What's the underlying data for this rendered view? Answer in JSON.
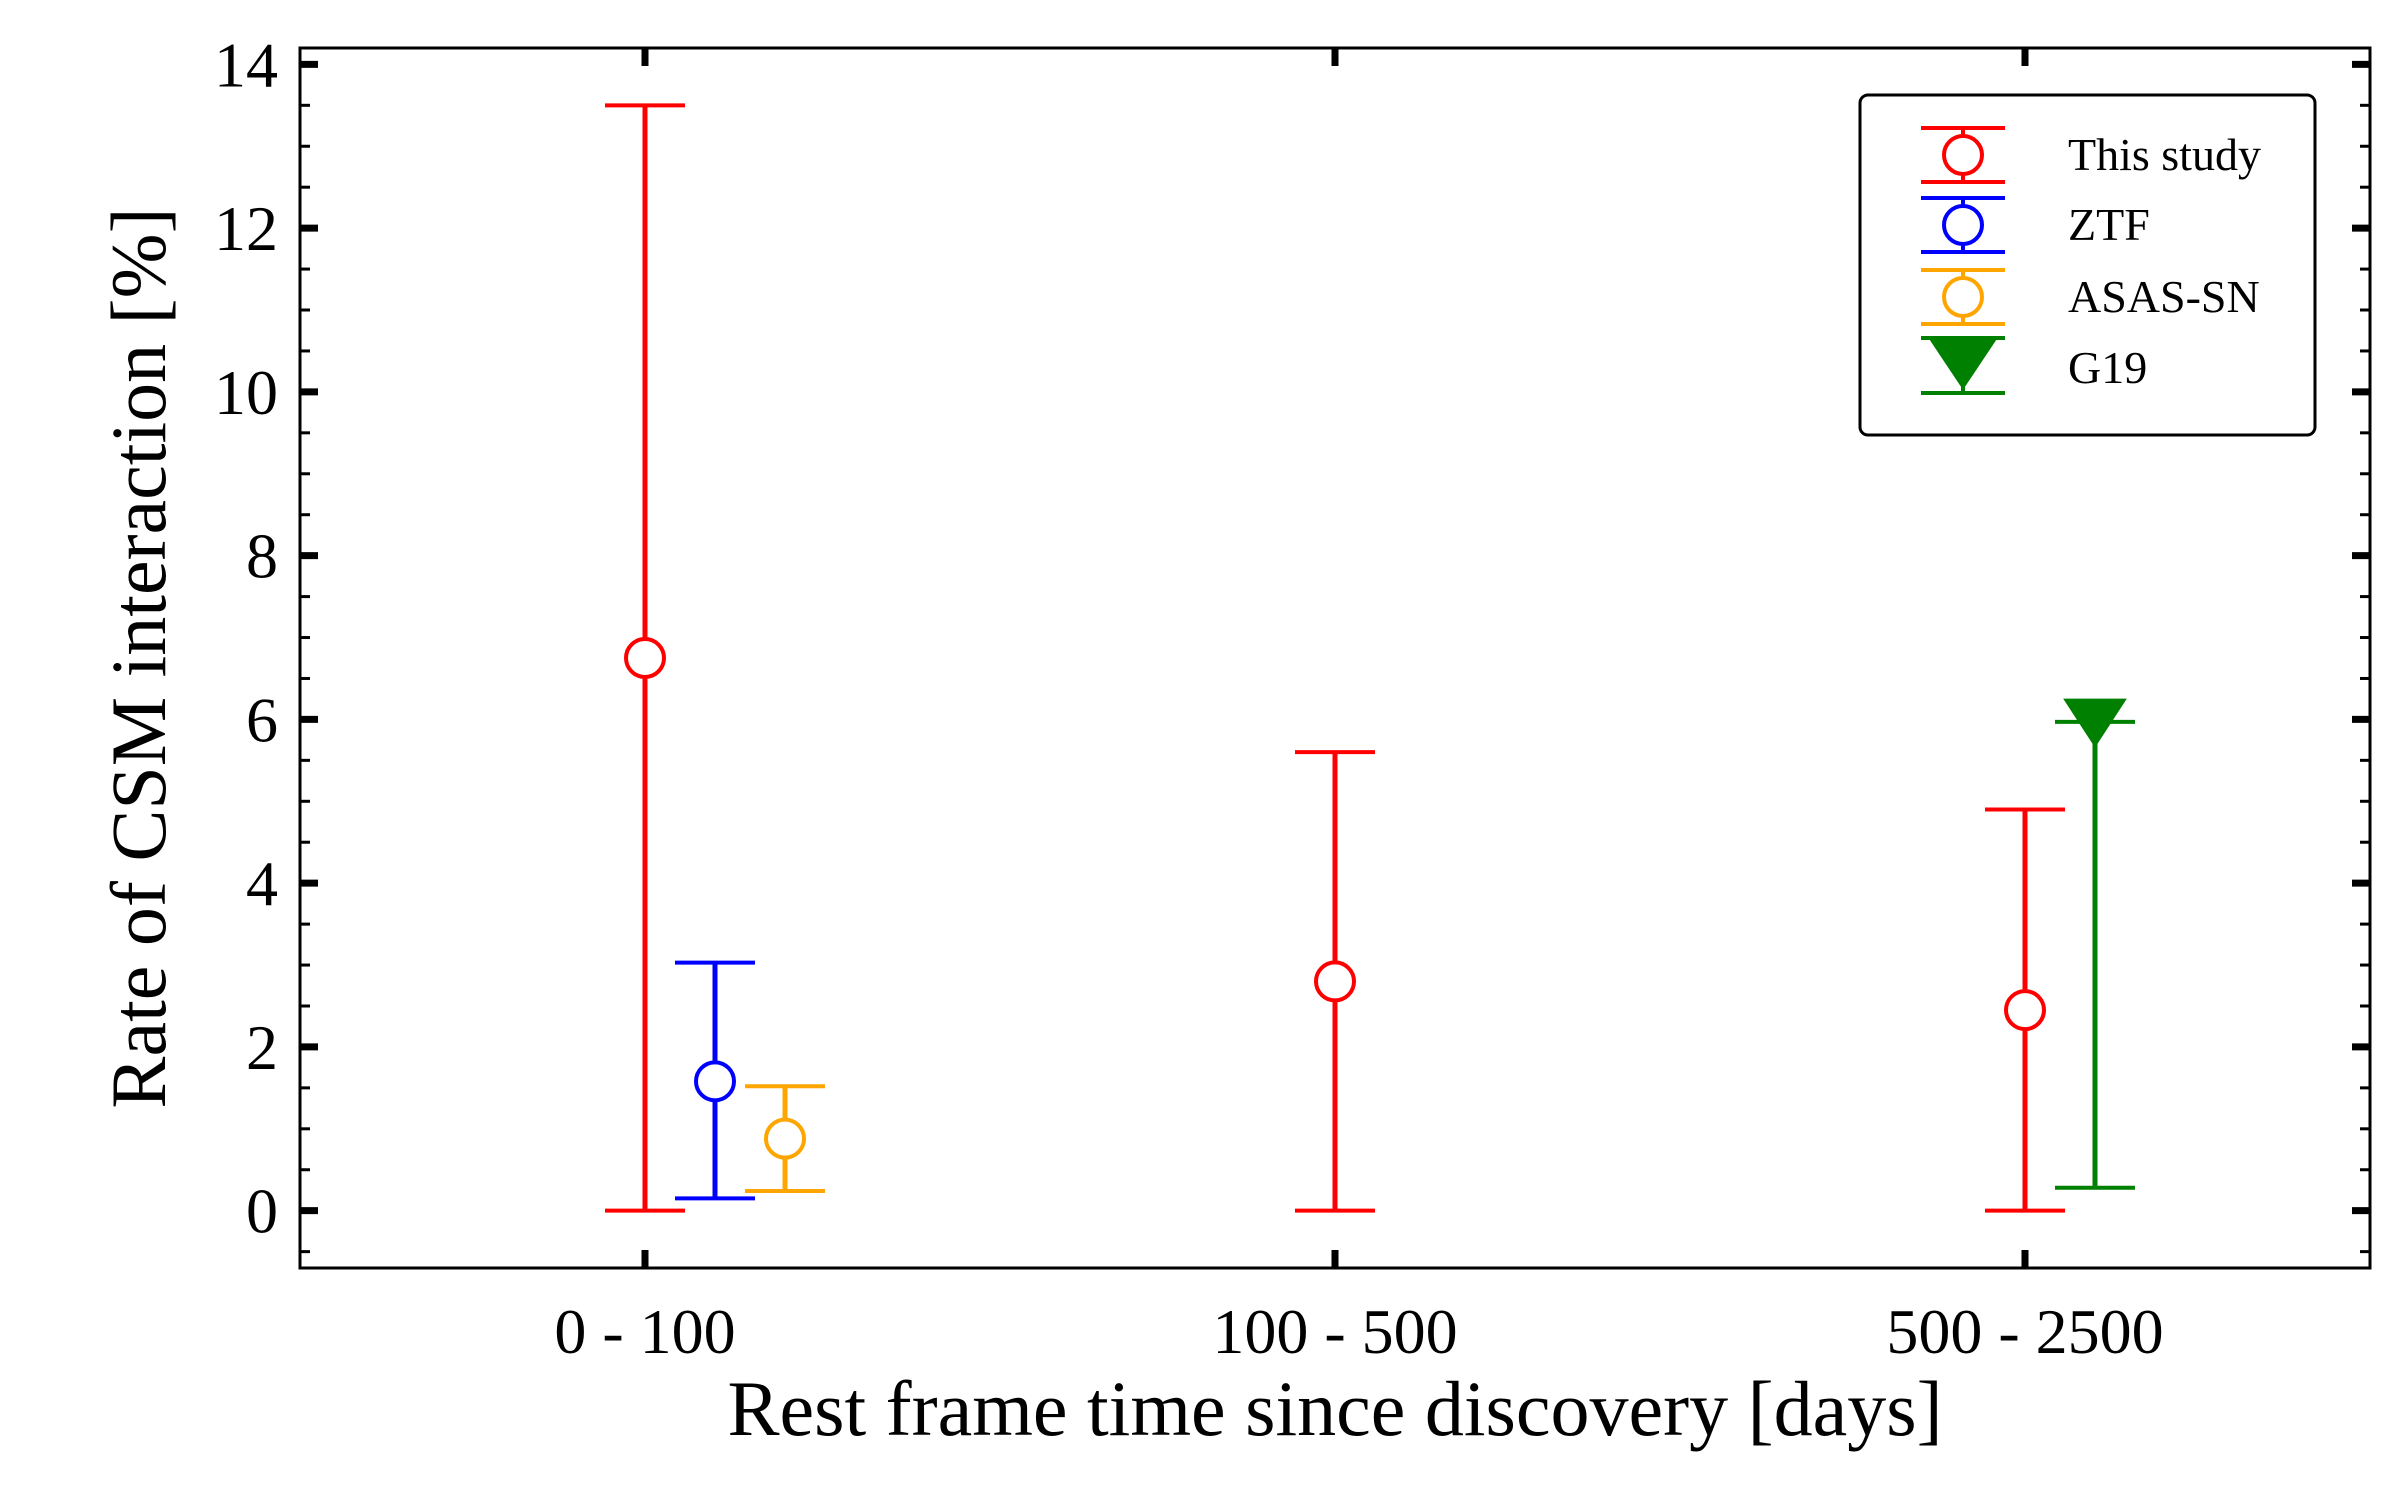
{
  "chart_data": {
    "type": "scatter",
    "xlabel": "Rest frame time since discovery [days]",
    "ylabel": "Rate of CSM interaction [%]",
    "categories": [
      "0 - 100",
      "100 - 500",
      "500 - 2500"
    ],
    "ylim": [
      -0.7,
      14.2
    ],
    "yticks": [
      0,
      2,
      4,
      6,
      8,
      10,
      12,
      14
    ],
    "grid": false,
    "legend_position": "top-right",
    "series": [
      {
        "name": "This study",
        "color": "#ff0000",
        "marker": "open-circle",
        "points": [
          {
            "category": "0 - 100",
            "y": 6.75,
            "ylow": 0.0,
            "yhigh": 13.5
          },
          {
            "category": "100 - 500",
            "y": 2.8,
            "ylow": 0.0,
            "yhigh": 5.6
          },
          {
            "category": "500 - 2500",
            "y": 2.45,
            "ylow": 0.0,
            "yhigh": 4.9
          }
        ]
      },
      {
        "name": "ZTF",
        "color": "#0000ff",
        "marker": "open-circle",
        "points": [
          {
            "category": "0 - 100",
            "y": 1.58,
            "ylow": 0.15,
            "yhigh": 3.03
          }
        ]
      },
      {
        "name": "ASAS-SN",
        "color": "#ffa500",
        "marker": "open-circle",
        "points": [
          {
            "category": "0 - 100",
            "y": 0.88,
            "ylow": 0.24,
            "yhigh": 1.52
          }
        ]
      },
      {
        "name": "G19",
        "color": "#008000",
        "marker": "filled-down-triangle",
        "points": [
          {
            "category": "500 - 2500",
            "y": 6.0,
            "ylow": 0.28,
            "yhigh": 5.97
          }
        ]
      }
    ]
  }
}
